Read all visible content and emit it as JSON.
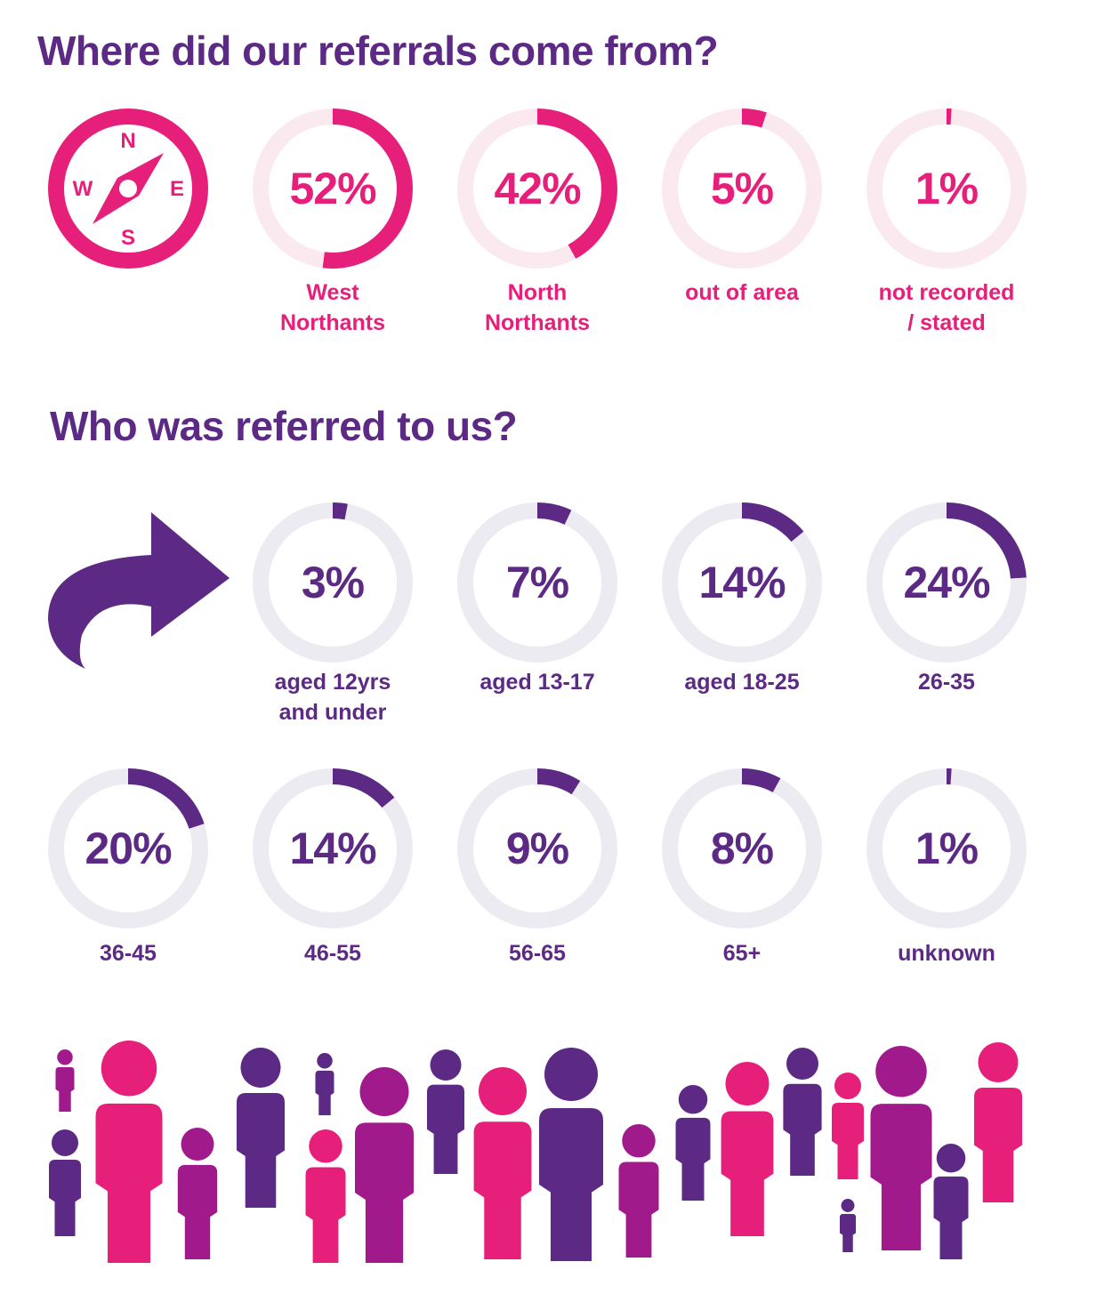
{
  "colors": {
    "purple": "#5c2a84",
    "pink": "#e6207a",
    "magenta": "#a11a8c",
    "pink_track": "#faeaf0",
    "purple_track": "#ecebf2"
  },
  "section_location": {
    "heading": "Where did our referrals come from?",
    "icon": "compass-icon",
    "compass": {
      "n": "N",
      "e": "E",
      "s": "S",
      "w": "W"
    }
  },
  "section_age": {
    "heading": "Who was referred to us?",
    "icon": "curved-arrow-icon"
  },
  "decoration": {
    "icon": "people-crowd-icon"
  },
  "chart_data": [
    {
      "type": "pie",
      "style": "donut-rings",
      "categories": [
        "West\nNorthants",
        "North\nNorthants",
        "out of area",
        "not recorded\n/ stated"
      ],
      "values": [
        52,
        42,
        5,
        1
      ],
      "labels": [
        "52%",
        "42%",
        "5%",
        "1%"
      ],
      "unit": "%"
    },
    {
      "type": "pie",
      "style": "donut-rings",
      "categories": [
        "aged 12yrs\nand under",
        "aged 13-17",
        "aged 18-25",
        "26-35",
        "36-45",
        "46-55",
        "56-65",
        "65+",
        "unknown"
      ],
      "values": [
        3,
        7,
        14,
        24,
        20,
        14,
        9,
        8,
        1
      ],
      "labels": [
        "3%",
        "7%",
        "14%",
        "24%",
        "20%",
        "14%",
        "9%",
        "8%",
        "1%"
      ],
      "unit": "%"
    }
  ]
}
